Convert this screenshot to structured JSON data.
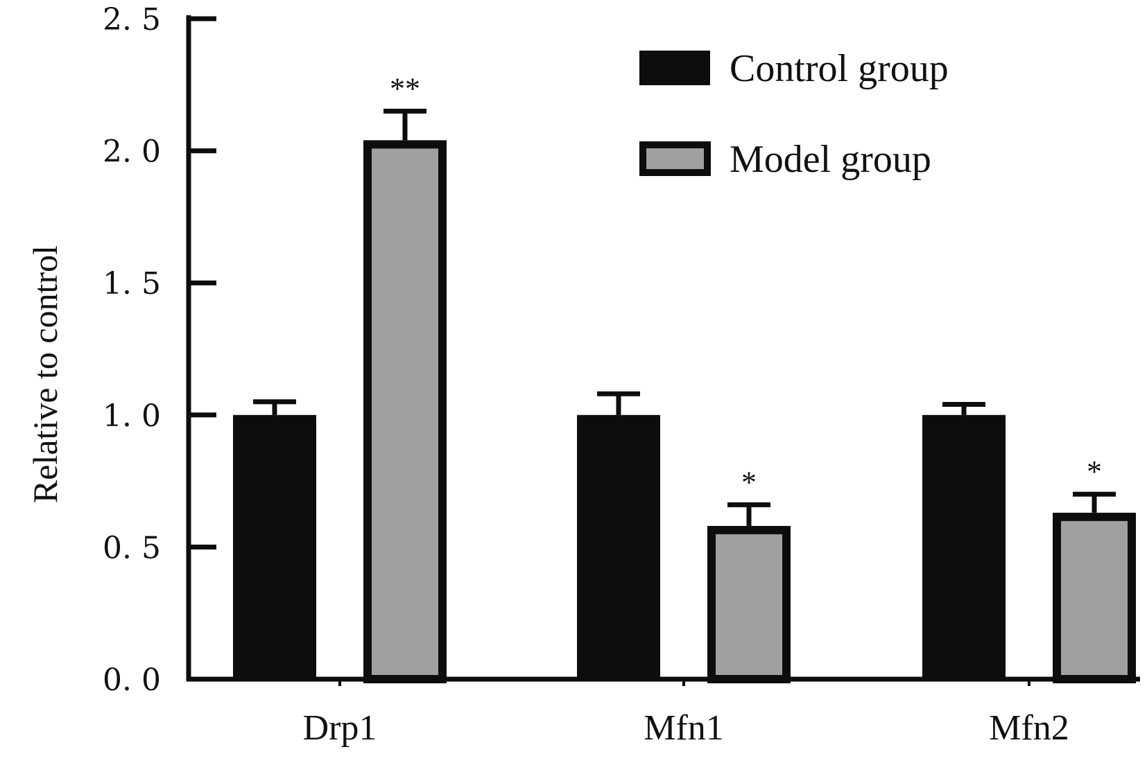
{
  "chart_data": {
    "type": "bar",
    "title": "",
    "xlabel": "",
    "ylabel": "Relative to control",
    "ylim": [
      0,
      2.5
    ],
    "yticks": [
      "0. 0",
      "0. 5",
      "1. 0",
      "1. 5",
      "2. 0",
      "2. 5"
    ],
    "ytick_values": [
      0,
      0.5,
      1.0,
      1.5,
      2.0,
      2.5
    ],
    "categories": [
      "Drp1",
      "Mfn1",
      "Mfn2"
    ],
    "series": [
      {
        "name": "Control group",
        "color": "#0d0d0d",
        "values": [
          1.0,
          1.0,
          1.0
        ],
        "errors": [
          0.05,
          0.08,
          0.04
        ]
      },
      {
        "name": "Model group",
        "color": "#a0a0a0",
        "values": [
          2.04,
          0.58,
          0.63
        ],
        "errors": [
          0.11,
          0.08,
          0.07
        ],
        "significance": [
          "**",
          "*",
          "*"
        ]
      }
    ],
    "legend_position": "top-right",
    "grid": false
  }
}
